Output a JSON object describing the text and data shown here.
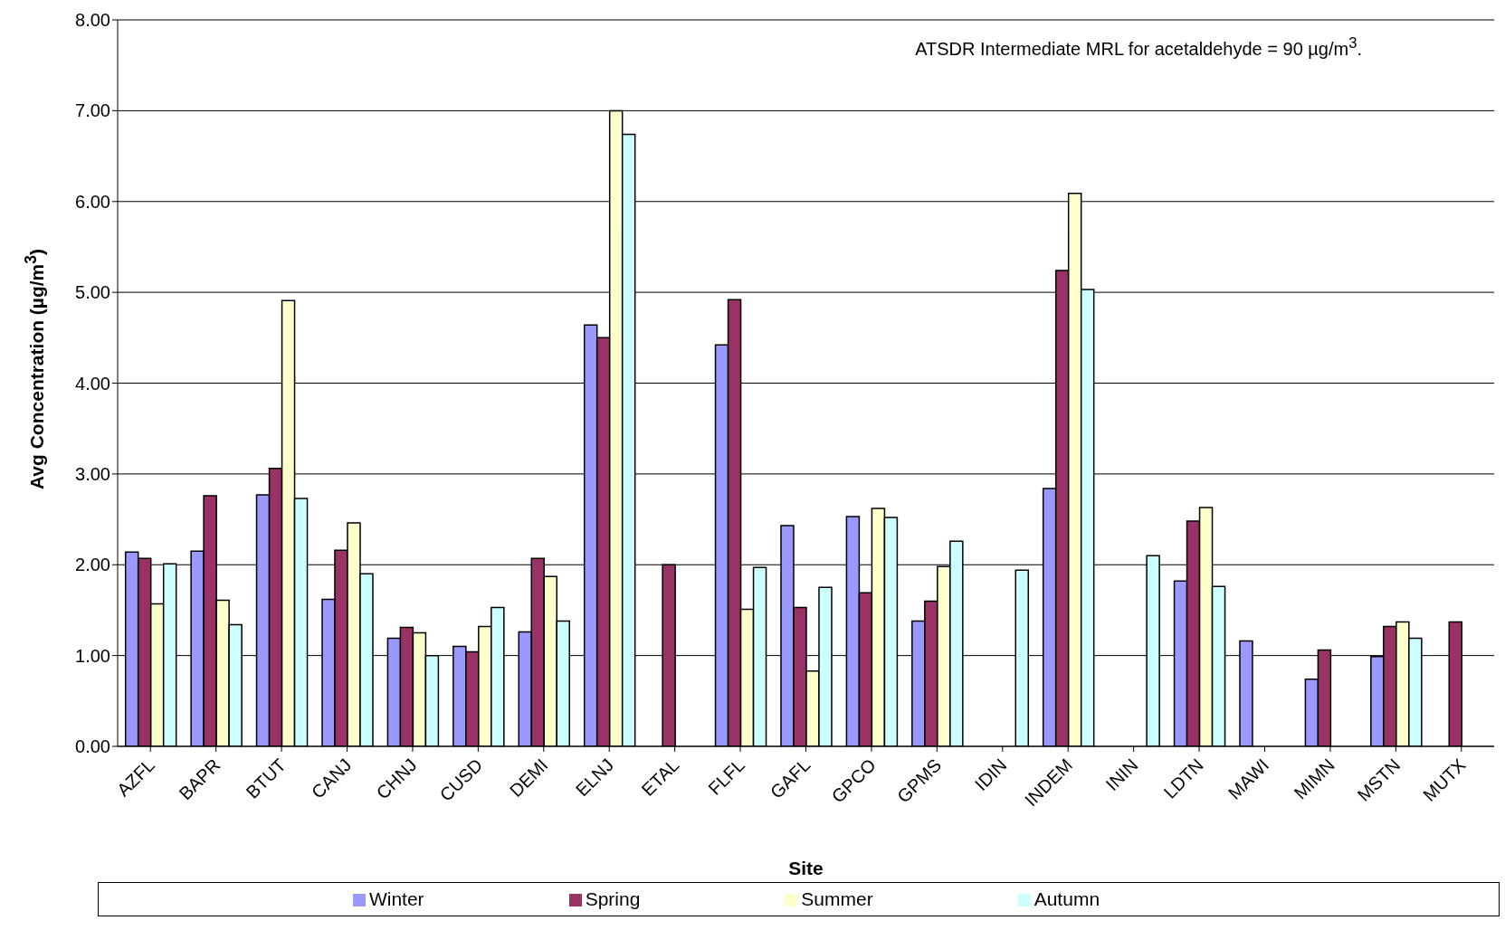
{
  "chart_data": {
    "type": "bar",
    "xlabel": "Site",
    "ylabel": "Avg Concentration (µg/m$^{3}$)",
    "annotations": [
      "ATSDR Intermediate MRL for acetaldehyde = 90 µg/m$^{3}$."
    ],
    "categories": [
      "AZFL",
      "BAPR",
      "BTUT",
      "CANJ",
      "CHNJ",
      "CUSD",
      "DEMI",
      "ELNJ",
      "ETAL",
      "FLFL",
      "GAFL",
      "GPCO",
      "GPMS",
      "IDIN",
      "INDEM",
      "ININ",
      "LDTN",
      "MAWI",
      "MIMN",
      "MSTN",
      "MUTX"
    ],
    "series": [
      {
        "name": "Winter",
        "color": "#9999ff",
        "values": [
          2.14,
          2.15,
          2.77,
          1.62,
          1.19,
          1.1,
          1.26,
          4.64,
          null,
          4.42,
          2.43,
          2.53,
          1.38,
          null,
          2.84,
          null,
          1.82,
          1.16,
          0.74,
          0.99,
          null
        ]
      },
      {
        "name": "Spring",
        "color": "#993366",
        "values": [
          2.07,
          2.76,
          3.06,
          2.16,
          1.31,
          1.04,
          2.07,
          4.5,
          2.0,
          4.92,
          1.53,
          1.69,
          1.6,
          null,
          5.24,
          null,
          2.48,
          null,
          1.06,
          1.32,
          1.37
        ]
      },
      {
        "name": "Summer",
        "color": "#ffffcc",
        "values": [
          1.57,
          1.61,
          4.91,
          2.46,
          1.25,
          1.32,
          1.87,
          7.0,
          null,
          1.51,
          0.83,
          2.62,
          1.98,
          null,
          6.09,
          null,
          2.63,
          null,
          null,
          1.37,
          null
        ]
      },
      {
        "name": "Autumn",
        "color": "#ccffff",
        "values": [
          2.01,
          1.34,
          2.73,
          1.9,
          1.0,
          1.53,
          1.38,
          6.74,
          null,
          1.97,
          1.75,
          2.52,
          2.26,
          1.94,
          5.03,
          2.1,
          1.76,
          null,
          null,
          1.19,
          null
        ]
      }
    ],
    "ylim": [
      0,
      8
    ],
    "yticks": [
      {
        "value": 0,
        "label": "0.00"
      },
      {
        "value": 1,
        "label": "1.00"
      },
      {
        "value": 2,
        "label": "2.00"
      },
      {
        "value": 3,
        "label": "3.00"
      },
      {
        "value": 4,
        "label": "4.00"
      },
      {
        "value": 5,
        "label": "5.00"
      },
      {
        "value": 6,
        "label": "6.00"
      },
      {
        "value": 7,
        "label": "7.00"
      },
      {
        "value": 8,
        "label": "8.00"
      }
    ],
    "grid": "y",
    "legend": "bottom"
  }
}
